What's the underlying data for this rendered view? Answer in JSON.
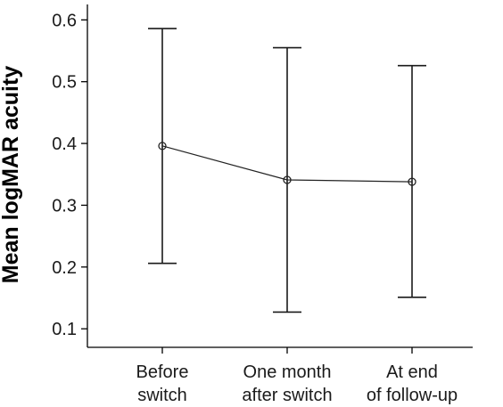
{
  "chart_data": {
    "type": "line",
    "title": "",
    "xlabel": "",
    "ylabel": "Mean logMAR acuity",
    "categories": [
      [
        "Before",
        "switch"
      ],
      [
        "One month",
        "after switch"
      ],
      [
        "At end",
        "of follow-up"
      ]
    ],
    "series": [
      {
        "values": [
          0.396,
          0.341,
          0.338
        ],
        "error_low": [
          0.206,
          0.127,
          0.151
        ],
        "error_high": [
          0.586,
          0.555,
          0.526
        ],
        "marker": "open-circle",
        "color": "#222222"
      }
    ],
    "yticks": [
      0.1,
      0.2,
      0.3,
      0.4,
      0.5,
      0.6
    ],
    "ylim": [
      0.07,
      0.625
    ],
    "grid": false,
    "legend": "none"
  }
}
